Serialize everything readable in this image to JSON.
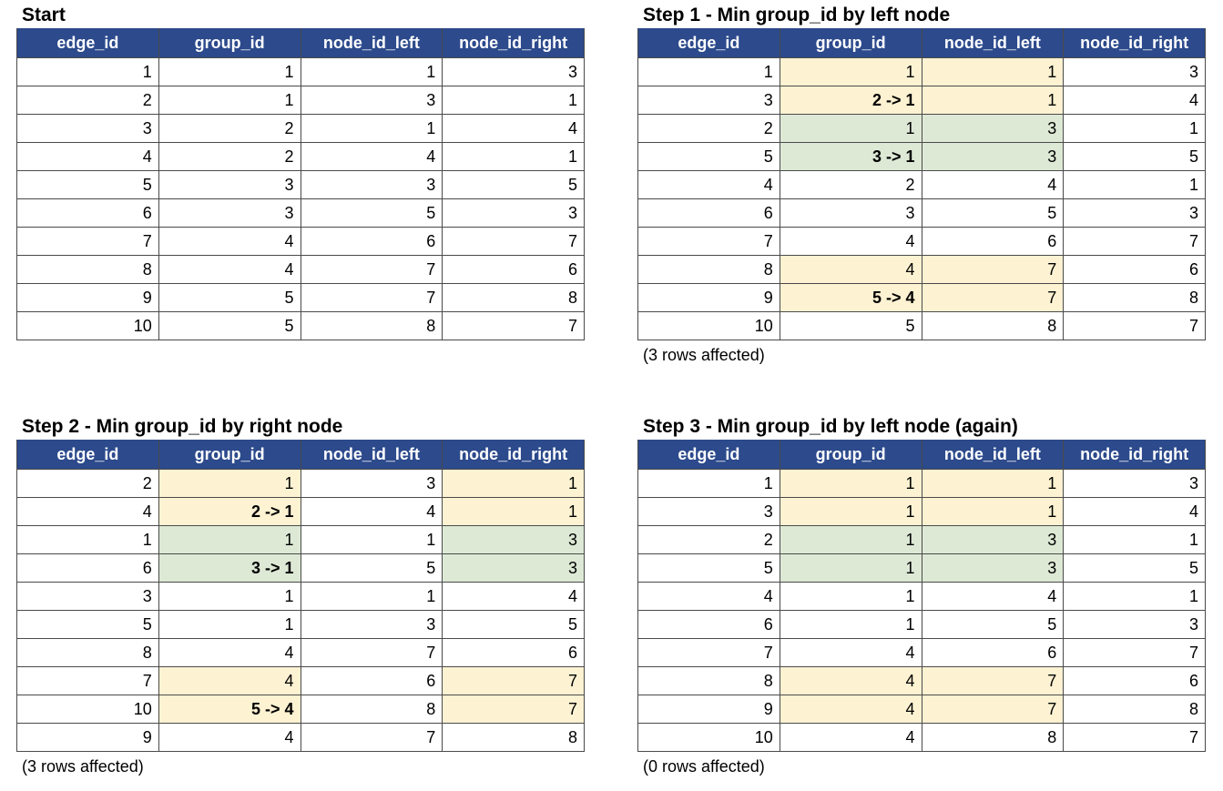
{
  "colors": {
    "header_bg": "#2c4a8c",
    "highlight_yellow": "#fdf2d2",
    "highlight_green": "#dde9d5"
  },
  "panels": [
    {
      "title": "Start",
      "headers": [
        "edge_id",
        "group_id",
        "node_id_left",
        "node_id_right"
      ],
      "rows": [
        {
          "cells": [
            "1",
            "1",
            "1",
            "3"
          ],
          "hl": "",
          "bold": false
        },
        {
          "cells": [
            "2",
            "1",
            "3",
            "1"
          ],
          "hl": "",
          "bold": false
        },
        {
          "cells": [
            "3",
            "2",
            "1",
            "4"
          ],
          "hl": "",
          "bold": false
        },
        {
          "cells": [
            "4",
            "2",
            "4",
            "1"
          ],
          "hl": "",
          "bold": false
        },
        {
          "cells": [
            "5",
            "3",
            "3",
            "5"
          ],
          "hl": "",
          "bold": false
        },
        {
          "cells": [
            "6",
            "3",
            "5",
            "3"
          ],
          "hl": "",
          "bold": false
        },
        {
          "cells": [
            "7",
            "4",
            "6",
            "7"
          ],
          "hl": "",
          "bold": false
        },
        {
          "cells": [
            "8",
            "4",
            "7",
            "6"
          ],
          "hl": "",
          "bold": false
        },
        {
          "cells": [
            "9",
            "5",
            "7",
            "8"
          ],
          "hl": "",
          "bold": false
        },
        {
          "cells": [
            "10",
            "5",
            "8",
            "7"
          ],
          "hl": "",
          "bold": false
        }
      ],
      "highlight_cols": [
        1,
        2
      ],
      "note": ""
    },
    {
      "title": "Step 1 - Min group_id by left node",
      "headers": [
        "edge_id",
        "group_id",
        "node_id_left",
        "node_id_right"
      ],
      "rows": [
        {
          "cells": [
            "1",
            "1",
            "1",
            "3"
          ],
          "hl": "yellow",
          "bold": false
        },
        {
          "cells": [
            "3",
            "2 -> 1",
            "1",
            "4"
          ],
          "hl": "yellow",
          "bold": true
        },
        {
          "cells": [
            "2",
            "1",
            "3",
            "1"
          ],
          "hl": "green",
          "bold": false
        },
        {
          "cells": [
            "5",
            "3 -> 1",
            "3",
            "5"
          ],
          "hl": "green",
          "bold": true
        },
        {
          "cells": [
            "4",
            "2",
            "4",
            "1"
          ],
          "hl": "",
          "bold": false
        },
        {
          "cells": [
            "6",
            "3",
            "5",
            "3"
          ],
          "hl": "",
          "bold": false
        },
        {
          "cells": [
            "7",
            "4",
            "6",
            "7"
          ],
          "hl": "",
          "bold": false
        },
        {
          "cells": [
            "8",
            "4",
            "7",
            "6"
          ],
          "hl": "yellow",
          "bold": false
        },
        {
          "cells": [
            "9",
            "5 -> 4",
            "7",
            "8"
          ],
          "hl": "yellow",
          "bold": true
        },
        {
          "cells": [
            "10",
            "5",
            "8",
            "7"
          ],
          "hl": "",
          "bold": false
        }
      ],
      "highlight_cols": [
        1,
        2
      ],
      "note": "(3 rows affected)"
    },
    {
      "title": "Step 2 - Min group_id by right node",
      "headers": [
        "edge_id",
        "group_id",
        "node_id_left",
        "node_id_right"
      ],
      "rows": [
        {
          "cells": [
            "2",
            "1",
            "3",
            "1"
          ],
          "hl": "yellow",
          "bold": false
        },
        {
          "cells": [
            "4",
            "2 -> 1",
            "4",
            "1"
          ],
          "hl": "yellow",
          "bold": true
        },
        {
          "cells": [
            "1",
            "1",
            "1",
            "3"
          ],
          "hl": "green",
          "bold": false
        },
        {
          "cells": [
            "6",
            "3 -> 1",
            "5",
            "3"
          ],
          "hl": "green",
          "bold": true
        },
        {
          "cells": [
            "3",
            "1",
            "1",
            "4"
          ],
          "hl": "",
          "bold": false
        },
        {
          "cells": [
            "5",
            "1",
            "3",
            "5"
          ],
          "hl": "",
          "bold": false
        },
        {
          "cells": [
            "8",
            "4",
            "7",
            "6"
          ],
          "hl": "",
          "bold": false
        },
        {
          "cells": [
            "7",
            "4",
            "6",
            "7"
          ],
          "hl": "yellow",
          "bold": false
        },
        {
          "cells": [
            "10",
            "5 -> 4",
            "8",
            "7"
          ],
          "hl": "yellow",
          "bold": true
        },
        {
          "cells": [
            "9",
            "4",
            "7",
            "8"
          ],
          "hl": "",
          "bold": false
        }
      ],
      "highlight_cols": [
        1,
        3
      ],
      "note": "(3 rows affected)"
    },
    {
      "title": "Step 3 - Min group_id by left node (again)",
      "headers": [
        "edge_id",
        "group_id",
        "node_id_left",
        "node_id_right"
      ],
      "rows": [
        {
          "cells": [
            "1",
            "1",
            "1",
            "3"
          ],
          "hl": "yellow",
          "bold": false
        },
        {
          "cells": [
            "3",
            "1",
            "1",
            "4"
          ],
          "hl": "yellow",
          "bold": false
        },
        {
          "cells": [
            "2",
            "1",
            "3",
            "1"
          ],
          "hl": "green",
          "bold": false
        },
        {
          "cells": [
            "5",
            "1",
            "3",
            "5"
          ],
          "hl": "green",
          "bold": false
        },
        {
          "cells": [
            "4",
            "1",
            "4",
            "1"
          ],
          "hl": "",
          "bold": false
        },
        {
          "cells": [
            "6",
            "1",
            "5",
            "3"
          ],
          "hl": "",
          "bold": false
        },
        {
          "cells": [
            "7",
            "4",
            "6",
            "7"
          ],
          "hl": "",
          "bold": false
        },
        {
          "cells": [
            "8",
            "4",
            "7",
            "6"
          ],
          "hl": "yellow",
          "bold": false
        },
        {
          "cells": [
            "9",
            "4",
            "7",
            "8"
          ],
          "hl": "yellow",
          "bold": false
        },
        {
          "cells": [
            "10",
            "4",
            "8",
            "7"
          ],
          "hl": "",
          "bold": false
        }
      ],
      "highlight_cols": [
        1,
        2
      ],
      "note": "(0 rows affected)"
    }
  ]
}
